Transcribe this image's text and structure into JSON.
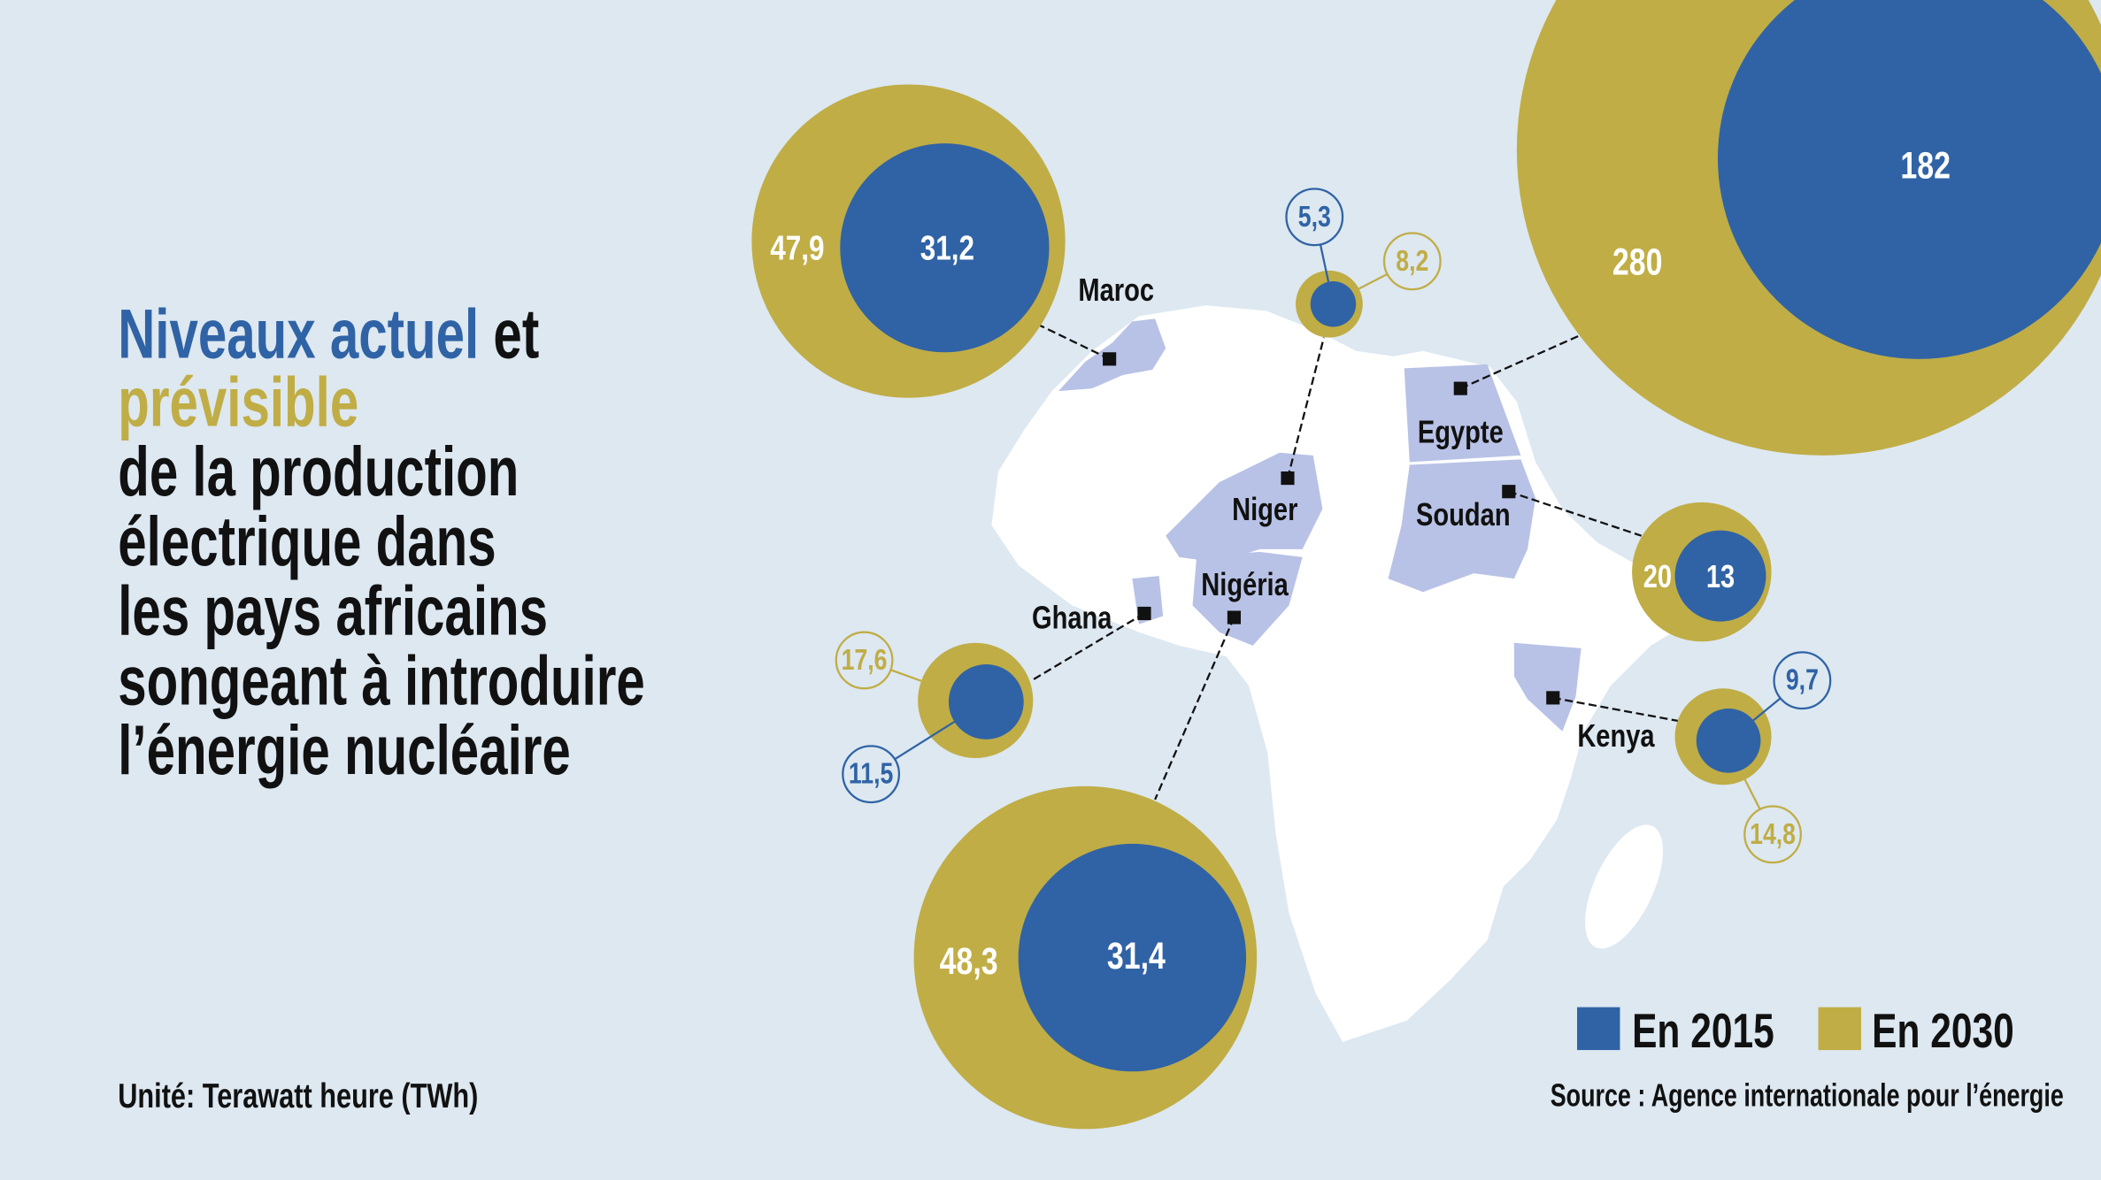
{
  "title": {
    "line1_blue": "Niveaux actuel",
    "line1_black": " et",
    "line2_gold": "prévisible",
    "lines": [
      "de la production",
      "électrique dans",
      "les pays africains",
      "songeant à introduire",
      "l’énergie nucléaire"
    ]
  },
  "unit_note": "Unité: Terawatt heure (TWh)",
  "source": "Source : Agence internationale pour l’énergie",
  "colors": {
    "background": "#dde8f1",
    "blue_2015": "#3063a5",
    "gold_2030": "#c0ad45",
    "country_fill": "#b8c2e6",
    "land": "#ffffff"
  },
  "chart_data": {
    "type": "bubble-map",
    "unit": "TWh",
    "legend": [
      {
        "name": "En 2015",
        "color": "#3063a5"
      },
      {
        "name": "En 2030",
        "color": "#c0ad45"
      }
    ],
    "legend_placement": "bottom-right",
    "series": [
      {
        "country": "Maroc",
        "v2015": 31.2,
        "v2030": 47.9,
        "label2015": "31,2",
        "label2030": "47,9"
      },
      {
        "country": "Egypte",
        "v2015": 182,
        "v2030": 280,
        "label2015": "182",
        "label2030": "280"
      },
      {
        "country": "Niger",
        "v2015": 5.3,
        "v2030": 8.2,
        "label2015": "5,3",
        "label2030": "8,2"
      },
      {
        "country": "Soudan",
        "v2015": 13,
        "v2030": 20,
        "label2015": "13",
        "label2030": "20"
      },
      {
        "country": "Ghana",
        "v2015": 11.5,
        "v2030": 17.6,
        "label2015": "11,5",
        "label2030": "17,6"
      },
      {
        "country": "Nigéria",
        "v2015": 31.4,
        "v2030": 48.3,
        "label2015": "31,4",
        "label2030": "48,3"
      },
      {
        "country": "Kenya",
        "v2015": 9.7,
        "v2030": 14.8,
        "label2015": "9,7",
        "label2030": "14,8"
      }
    ]
  }
}
